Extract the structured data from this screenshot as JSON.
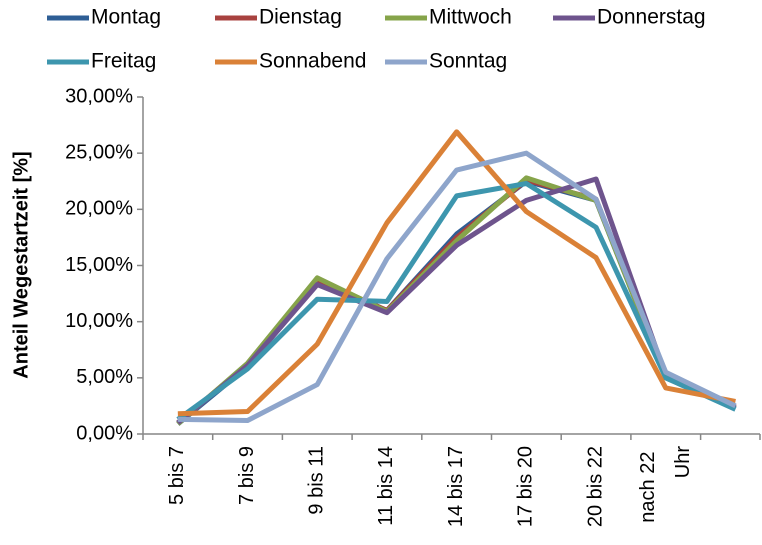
{
  "chart_data": {
    "type": "line",
    "y_label": "Anteil Wegestartzeit [%]",
    "categories": [
      "5 bis 7",
      "7 bis 9",
      "9 bis 11",
      "11 bis 14",
      "14 bis 17",
      "17 bis 20",
      "20 bis 22",
      "nach 22 Uhr",
      null
    ],
    "series": [
      {
        "name": "Montag",
        "color": "#2e5e95",
        "values": [
          0.9,
          6.0,
          13.5,
          11.0,
          17.8,
          22.5,
          20.8,
          5.0,
          2.3
        ]
      },
      {
        "name": "Dienstag",
        "color": "#a8423f",
        "values": [
          1.0,
          6.2,
          13.7,
          11.0,
          17.5,
          22.6,
          20.9,
          5.1,
          2.4
        ]
      },
      {
        "name": "Mittwoch",
        "color": "#86a44a",
        "values": [
          0.9,
          6.3,
          13.9,
          10.9,
          17.2,
          22.8,
          20.8,
          5.0,
          2.3
        ]
      },
      {
        "name": "Donnerstag",
        "color": "#6e548d",
        "values": [
          1.0,
          6.1,
          13.3,
          10.8,
          16.8,
          20.8,
          22.7,
          5.2,
          2.3
        ]
      },
      {
        "name": "Freitag",
        "color": "#3d96ae",
        "values": [
          1.3,
          5.8,
          12.0,
          11.8,
          21.2,
          22.3,
          18.4,
          5.0,
          2.2
        ]
      },
      {
        "name": "Sonnabend",
        "color": "#da8137",
        "values": [
          1.8,
          2.0,
          8.0,
          18.8,
          26.9,
          19.8,
          15.7,
          4.1,
          2.9
        ]
      },
      {
        "name": "Sonntag",
        "color": "#8ea5cb",
        "values": [
          1.3,
          1.2,
          4.4,
          15.6,
          23.5,
          25.0,
          20.9,
          5.5,
          2.5
        ]
      }
    ],
    "ylim": [
      0,
      30
    ],
    "yticks": [
      {
        "value": 0,
        "label": "0,00%"
      },
      {
        "value": 5,
        "label": "5,00%"
      },
      {
        "value": 10,
        "label": "10,00%"
      },
      {
        "value": 15,
        "label": "15,00%"
      },
      {
        "value": 20,
        "label": "20,00%"
      },
      {
        "value": 25,
        "label": "25,00%"
      },
      {
        "value": 30,
        "label": "30,00%"
      }
    ],
    "grid": false
  }
}
